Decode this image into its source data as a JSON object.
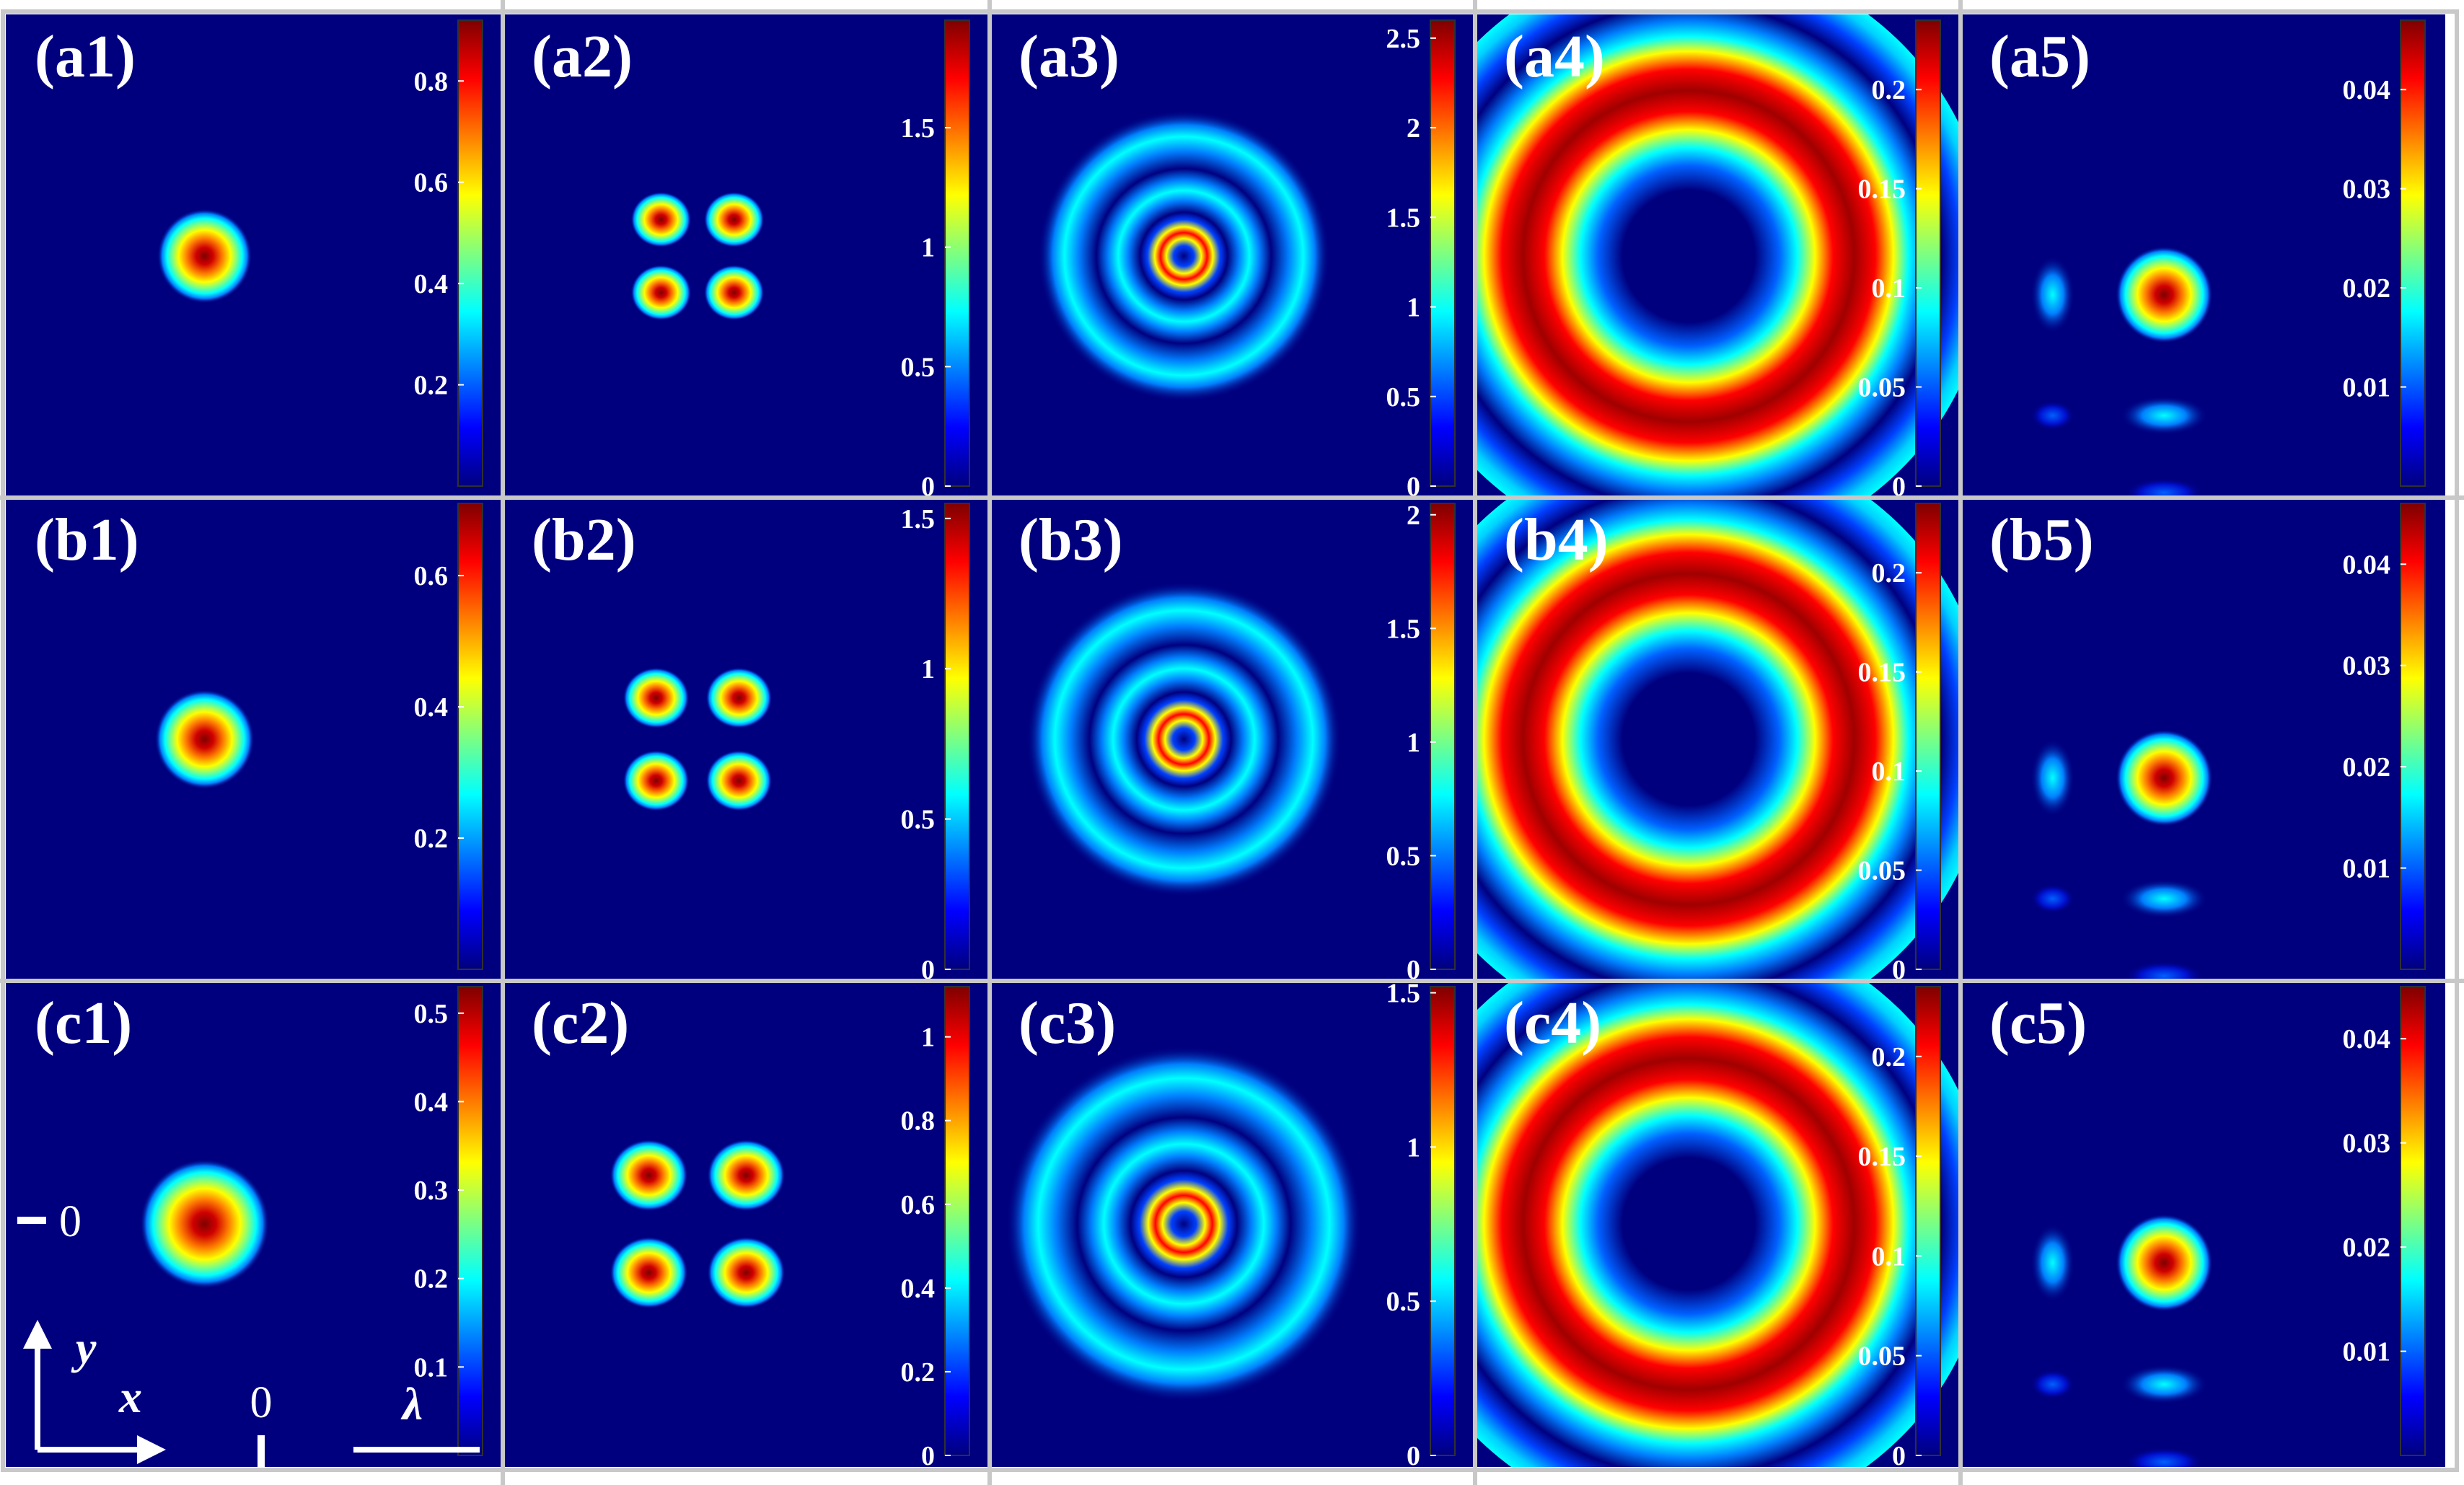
{
  "colors": {
    "background": "#00007f",
    "panel_border": "#c8c8c8",
    "label_text": "#ffffff",
    "colormap": [
      "#00007f",
      "#0000ff",
      "#007fff",
      "#00ffff",
      "#7fff7f",
      "#ffff00",
      "#ff7f00",
      "#ff0000",
      "#7f0000"
    ]
  },
  "annotations": {
    "axis_y": "y",
    "axis_x": "x",
    "zero_y": "0",
    "zero_x": "0",
    "scale_bar": "λ"
  },
  "chart_data": [
    {
      "type": "heatmap",
      "label": "(a1)",
      "pattern": "gaussian",
      "peak_fraction": 1.0,
      "colorbar": {
        "ticks": [
          "0.8",
          "0.6",
          "0.4",
          "0.2"
        ],
        "tick_values": [
          0.8,
          0.6,
          0.4,
          0.2
        ],
        "range": [
          0,
          0.92
        ]
      }
    },
    {
      "type": "heatmap",
      "label": "(a2)",
      "pattern": "four-lobe",
      "peak_fraction": 1.0,
      "colorbar": {
        "ticks": [
          "1.5",
          "1",
          "0.5",
          "0"
        ],
        "tick_values": [
          1.5,
          1,
          0.5,
          0
        ],
        "range": [
          0,
          1.95
        ]
      }
    },
    {
      "type": "heatmap",
      "label": "(a3)",
      "pattern": "rings",
      "peak_fraction": 1.0,
      "colorbar": {
        "ticks": [
          "2.5",
          "2",
          "1.5",
          "1",
          "0.5",
          "0"
        ],
        "tick_values": [
          2.5,
          2,
          1.5,
          1,
          0.5,
          0
        ],
        "range": [
          0,
          2.6
        ]
      }
    },
    {
      "type": "heatmap",
      "label": "(a4)",
      "pattern": "annulus",
      "peak_fraction": 1.0,
      "colorbar": {
        "ticks": [
          "0.2",
          "0.15",
          "0.1",
          "0.05",
          "0"
        ],
        "tick_values": [
          0.2,
          0.15,
          0.1,
          0.05,
          0
        ],
        "range": [
          0,
          0.235
        ]
      }
    },
    {
      "type": "heatmap",
      "label": "(a5)",
      "pattern": "airy",
      "peak_fraction": 1.0,
      "colorbar": {
        "ticks": [
          "0.04",
          "0.03",
          "0.02",
          "0.01"
        ],
        "tick_values": [
          0.04,
          0.03,
          0.02,
          0.01
        ],
        "range": [
          0,
          0.047
        ]
      }
    },
    {
      "type": "heatmap",
      "label": "(b1)",
      "pattern": "gaussian",
      "peak_fraction": 1.0,
      "colorbar": {
        "ticks": [
          "0.6",
          "0.4",
          "0.2"
        ],
        "tick_values": [
          0.6,
          0.4,
          0.2
        ],
        "range": [
          0,
          0.71
        ]
      }
    },
    {
      "type": "heatmap",
      "label": "(b2)",
      "pattern": "four-lobe",
      "peak_fraction": 1.0,
      "colorbar": {
        "ticks": [
          "1.5",
          "1",
          "0.5",
          "0"
        ],
        "tick_values": [
          1.5,
          1,
          0.5,
          0
        ],
        "range": [
          0,
          1.55
        ]
      }
    },
    {
      "type": "heatmap",
      "label": "(b3)",
      "pattern": "rings",
      "peak_fraction": 1.0,
      "colorbar": {
        "ticks": [
          "2",
          "1.5",
          "1",
          "0.5",
          "0"
        ],
        "tick_values": [
          2,
          1.5,
          1,
          0.5,
          0
        ],
        "range": [
          0,
          2.05
        ]
      }
    },
    {
      "type": "heatmap",
      "label": "(b4)",
      "pattern": "annulus",
      "peak_fraction": 1.0,
      "colorbar": {
        "ticks": [
          "0.2",
          "0.15",
          "0.1",
          "0.05",
          "0"
        ],
        "tick_values": [
          0.2,
          0.15,
          0.1,
          0.05,
          0
        ],
        "range": [
          0,
          0.235
        ]
      }
    },
    {
      "type": "heatmap",
      "label": "(b5)",
      "pattern": "airy",
      "peak_fraction": 1.0,
      "colorbar": {
        "ticks": [
          "0.04",
          "0.03",
          "0.02",
          "0.01"
        ],
        "tick_values": [
          0.04,
          0.03,
          0.02,
          0.01
        ],
        "range": [
          0,
          0.046
        ]
      }
    },
    {
      "type": "heatmap",
      "label": "(c1)",
      "pattern": "gaussian",
      "peak_fraction": 1.0,
      "colorbar": {
        "ticks": [
          "0.5",
          "0.4",
          "0.3",
          "0.2",
          "0.1"
        ],
        "tick_values": [
          0.5,
          0.4,
          0.3,
          0.2,
          0.1
        ],
        "range": [
          0,
          0.53
        ]
      }
    },
    {
      "type": "heatmap",
      "label": "(c2)",
      "pattern": "four-lobe",
      "peak_fraction": 1.0,
      "colorbar": {
        "ticks": [
          "1",
          "0.8",
          "0.6",
          "0.4",
          "0.2",
          "0"
        ],
        "tick_values": [
          1,
          0.8,
          0.6,
          0.4,
          0.2,
          0
        ],
        "range": [
          0,
          1.12
        ]
      }
    },
    {
      "type": "heatmap",
      "label": "(c3)",
      "pattern": "rings",
      "peak_fraction": 1.0,
      "colorbar": {
        "ticks": [
          "1.5",
          "1",
          "0.5",
          "0"
        ],
        "tick_values": [
          1.5,
          1,
          0.5,
          0
        ],
        "range": [
          0,
          1.52
        ]
      }
    },
    {
      "type": "heatmap",
      "label": "(c4)",
      "pattern": "annulus",
      "peak_fraction": 1.0,
      "colorbar": {
        "ticks": [
          "0.2",
          "0.15",
          "0.1",
          "0.05",
          "0"
        ],
        "tick_values": [
          0.2,
          0.15,
          0.1,
          0.05,
          0
        ],
        "range": [
          0,
          0.235
        ]
      }
    },
    {
      "type": "heatmap",
      "label": "(c5)",
      "pattern": "airy",
      "peak_fraction": 1.0,
      "colorbar": {
        "ticks": [
          "0.04",
          "0.03",
          "0.02",
          "0.01"
        ],
        "tick_values": [
          0.04,
          0.03,
          0.02,
          0.01
        ],
        "range": [
          0,
          0.045
        ]
      }
    }
  ]
}
